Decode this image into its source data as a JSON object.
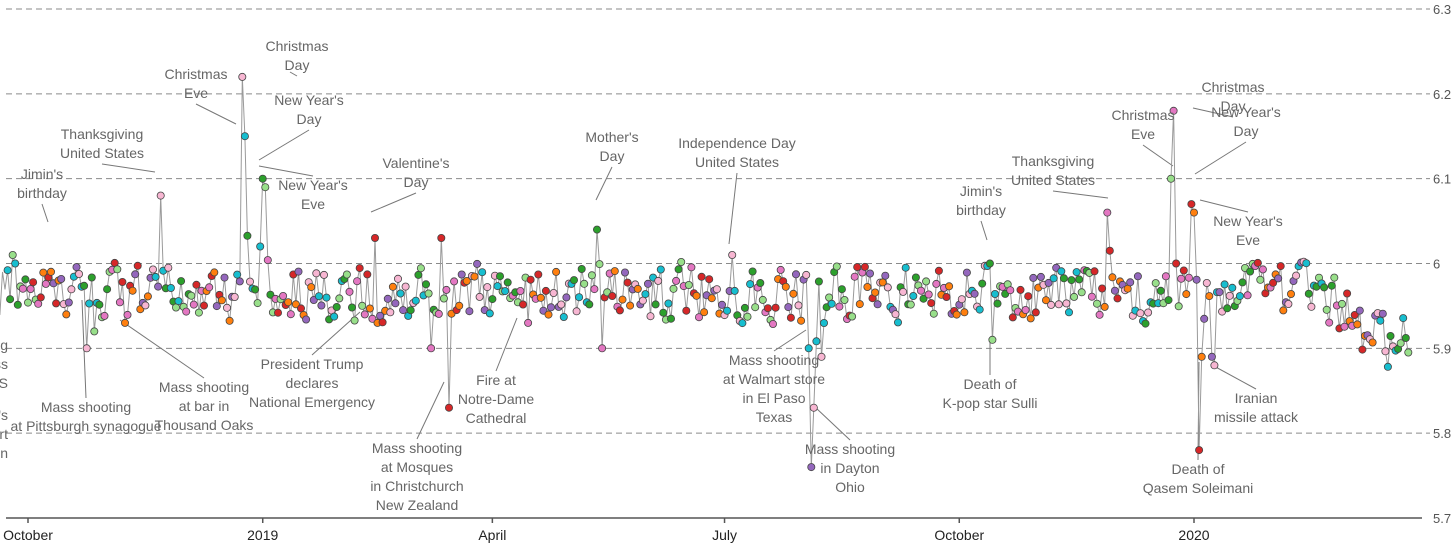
{
  "chart_data": {
    "type": "scatter",
    "title": "",
    "xlabel": "",
    "ylabel": "",
    "ylim": [
      5.7,
      6.3
    ],
    "yticks": [
      "5.7",
      "5.8",
      "5.9",
      "6",
      "6.1",
      "6.2",
      "6.3"
    ],
    "grid": true,
    "x_range": [
      "2018-09-10",
      "2020-03-25"
    ],
    "xticks": [
      {
        "date": "2018-10-01",
        "label": "October"
      },
      {
        "date": "2019-01-01",
        "label": "2019"
      },
      {
        "date": "2019-04-01",
        "label": "April"
      },
      {
        "date": "2019-07-01",
        "label": "July"
      },
      {
        "date": "2019-10-01",
        "label": "October"
      },
      {
        "date": "2020-01-01",
        "label": "2020"
      }
    ],
    "point_colors": [
      "#d62728",
      "#2ca02c",
      "#9467bd",
      "#e377c2",
      "#17becf",
      "#ff7f0e",
      "#98df8a",
      "#f7b6d2"
    ],
    "base_level": 5.965,
    "events": [
      {
        "date": "2018-09-10",
        "value": 5.97
      },
      {
        "date": "2018-09-14",
        "value": 5.94
      },
      {
        "date": "2018-09-21",
        "value": 5.99
      },
      {
        "date": "2018-09-25",
        "value": 6.01
      },
      {
        "date": "2018-09-26",
        "value": 6.0
      },
      {
        "date": "2018-10-02",
        "value": 5.97
      },
      {
        "date": "2018-10-06",
        "value": 5.96
      },
      {
        "date": "2018-10-13",
        "value": 5.98
      },
      {
        "date": "2018-10-16",
        "value": 5.94
      },
      {
        "date": "2018-10-24",
        "value": 5.9
      },
      {
        "date": "2018-10-27",
        "value": 5.92
      },
      {
        "date": "2018-11-08",
        "value": 5.93
      },
      {
        "date": "2018-11-22",
        "value": 6.08
      },
      {
        "date": "2018-12-24",
        "value": 6.22
      },
      {
        "date": "2018-12-25",
        "value": 6.15
      },
      {
        "date": "2018-12-31",
        "value": 6.02
      },
      {
        "date": "2019-01-01",
        "value": 6.1
      },
      {
        "date": "2019-01-02",
        "value": 6.09
      },
      {
        "date": "2019-02-14",
        "value": 6.03
      },
      {
        "date": "2019-02-15",
        "value": 5.93
      },
      {
        "date": "2019-03-08",
        "value": 5.9
      },
      {
        "date": "2019-03-15",
        "value": 5.83
      },
      {
        "date": "2019-03-12",
        "value": 6.03
      },
      {
        "date": "2019-04-15",
        "value": 5.93
      },
      {
        "date": "2019-05-12",
        "value": 6.04
      },
      {
        "date": "2019-05-14",
        "value": 5.9
      },
      {
        "date": "2019-07-04",
        "value": 6.01
      },
      {
        "date": "2019-08-03",
        "value": 5.9
      },
      {
        "date": "2019-08-04",
        "value": 5.76
      },
      {
        "date": "2019-08-05",
        "value": 5.83
      },
      {
        "date": "2019-08-08",
        "value": 5.89
      },
      {
        "date": "2019-10-13",
        "value": 6.0
      },
      {
        "date": "2019-10-14",
        "value": 5.91
      },
      {
        "date": "2019-11-28",
        "value": 6.06
      },
      {
        "date": "2019-12-24",
        "value": 6.18
      },
      {
        "date": "2019-12-23",
        "value": 6.1
      },
      {
        "date": "2019-12-25",
        "value": 6.0
      },
      {
        "date": "2019-12-31",
        "value": 6.07
      },
      {
        "date": "2020-01-01",
        "value": 6.06
      },
      {
        "date": "2020-01-03",
        "value": 5.78
      },
      {
        "date": "2020-01-04",
        "value": 5.89
      },
      {
        "date": "2020-01-08",
        "value": 5.89
      },
      {
        "date": "2020-01-09",
        "value": 5.88
      }
    ],
    "annotations": [
      {
        "text": [
          "Jimin's",
          "birthday"
        ]
      },
      {
        "text": [
          "Thanksgiving",
          "United States"
        ]
      },
      {
        "text": [
          "Christmas",
          "Eve"
        ]
      },
      {
        "text": [
          "Christmas",
          "Day"
        ]
      },
      {
        "text": [
          "New Year's",
          "Day"
        ]
      },
      {
        "text": [
          "New Year's",
          "Eve"
        ]
      },
      {
        "text": [
          "Valentine's",
          "Day"
        ]
      },
      {
        "text": [
          "Mother's",
          "Day"
        ]
      },
      {
        "text": [
          "Independence Day",
          "United States"
        ]
      },
      {
        "text": [
          "Jimin's",
          "birthday"
        ]
      },
      {
        "text": [
          "Thanksgiving",
          "United States"
        ]
      },
      {
        "text": [
          "Christmas",
          "Eve"
        ]
      },
      {
        "text": [
          "Christmas",
          "Day"
        ]
      },
      {
        "text": [
          "New Year's",
          "Day"
        ]
      },
      {
        "text": [
          "New Year's",
          "Eve"
        ]
      },
      {
        "text": [
          "mbing",
          "s across",
          "US"
        ]
      },
      {
        "text": [
          "vanaugh's",
          "e Court",
          "mation"
        ]
      },
      {
        "text": [
          "Mass shooting",
          "at Pittsburgh synagogue"
        ]
      },
      {
        "text": [
          "Mass shooting",
          "at bar in",
          "Thousand Oaks"
        ]
      },
      {
        "text": [
          "President Trump",
          "declares",
          "National Emergency"
        ]
      },
      {
        "text": [
          "Mass shooting",
          "at Mosques",
          "in Christchurch",
          "New Zealand"
        ]
      },
      {
        "text": [
          "Fire at",
          "Notre-Dame",
          "Cathedral"
        ]
      },
      {
        "text": [
          "Mass shooting",
          "at Walmart store",
          "in El Paso",
          "Texas"
        ]
      },
      {
        "text": [
          "Mass shooting",
          "in Dayton",
          "Ohio"
        ]
      },
      {
        "text": [
          "Death of",
          "K-pop star Sulli"
        ]
      },
      {
        "text": [
          "Iranian",
          "missile attack"
        ]
      },
      {
        "text": [
          "Death of",
          "Qasem Soleimani"
        ]
      }
    ]
  }
}
